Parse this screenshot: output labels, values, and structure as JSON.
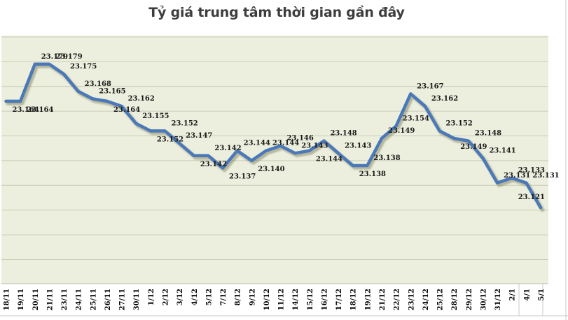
{
  "chart_data": {
    "type": "line",
    "title": "Tỷ giá trung tâm thời gian gần đây",
    "xlabel": "",
    "ylabel": "",
    "categories": [
      "18/11",
      "19/11",
      "20/11",
      "21/11",
      "23/11",
      "24/11",
      "25/11",
      "26/11",
      "27/11",
      "30/11",
      "1/12",
      "2/12",
      "3/12",
      "4/12",
      "5/12",
      "7/12",
      "8/12",
      "9/12",
      "10/12",
      "11/12",
      "14/12",
      "15/12",
      "16/12",
      "17/12",
      "18/12",
      "19/12",
      "21/12",
      "22/12",
      "23/12",
      "24/12",
      "25/12",
      "28/12",
      "29/12",
      "30/12",
      "31/12",
      "2/1",
      "4/1",
      "5/1"
    ],
    "values": [
      23164,
      23164,
      23179,
      23179,
      23175,
      23168,
      23165,
      23164,
      23162,
      23155,
      23152,
      23152,
      23147,
      23142,
      23142,
      23137,
      23144,
      23140,
      23144,
      23146,
      23143,
      23144,
      23148,
      23143,
      23138,
      23138,
      23149,
      23154,
      23167,
      23162,
      23152,
      23149,
      23148,
      23141,
      23131,
      23133,
      23131,
      23121
    ],
    "labels": [
      "23.164",
      "23.164",
      "23.179",
      "23.179",
      "23.175",
      "23.168",
      "23.165",
      "23.164",
      "23.162",
      "23.155",
      "23.152",
      "23.152",
      "23.147",
      "23.142",
      "23.142",
      "23.137",
      "23.144",
      "23.140",
      "23.144",
      "23.146",
      "23.143",
      "23.144",
      "23.148",
      "23.143",
      "23.138",
      "23.138",
      "23.149",
      "23.154",
      "23.167",
      "23.162",
      "23.152",
      "23.149",
      "23.148",
      "23.141",
      "23.131",
      "23.133",
      "23.131",
      "23.121"
    ],
    "label_sides": [
      "below",
      "below",
      "above",
      "above",
      "above",
      "above",
      "above",
      "below",
      "above",
      "above",
      "below",
      "above",
      "above",
      "below",
      "above",
      "below",
      "above",
      "below",
      "above",
      "above",
      "above",
      "below",
      "above",
      "above",
      "below",
      "above",
      "above",
      "above",
      "above",
      "above",
      "above",
      "below",
      "above",
      "above",
      "above",
      "above",
      "above",
      "above-left"
    ],
    "ylim": [
      23100,
      23190
    ],
    "grid_interval": 10,
    "grid": true,
    "legend": "none",
    "y_axis_labels_visible": false
  },
  "colors": {
    "line": "#4a78b8",
    "line_shadow": "#6f6f49",
    "plot_bg": "#ecefdd",
    "gridline": "#c9ccb8",
    "plot_border": "#b9bca8",
    "data_label": "#1a1a1a",
    "axis_label": "#000000",
    "title": "#3d3d3d",
    "sheet_line": "#c9c9c9",
    "background": "#ffffff"
  }
}
